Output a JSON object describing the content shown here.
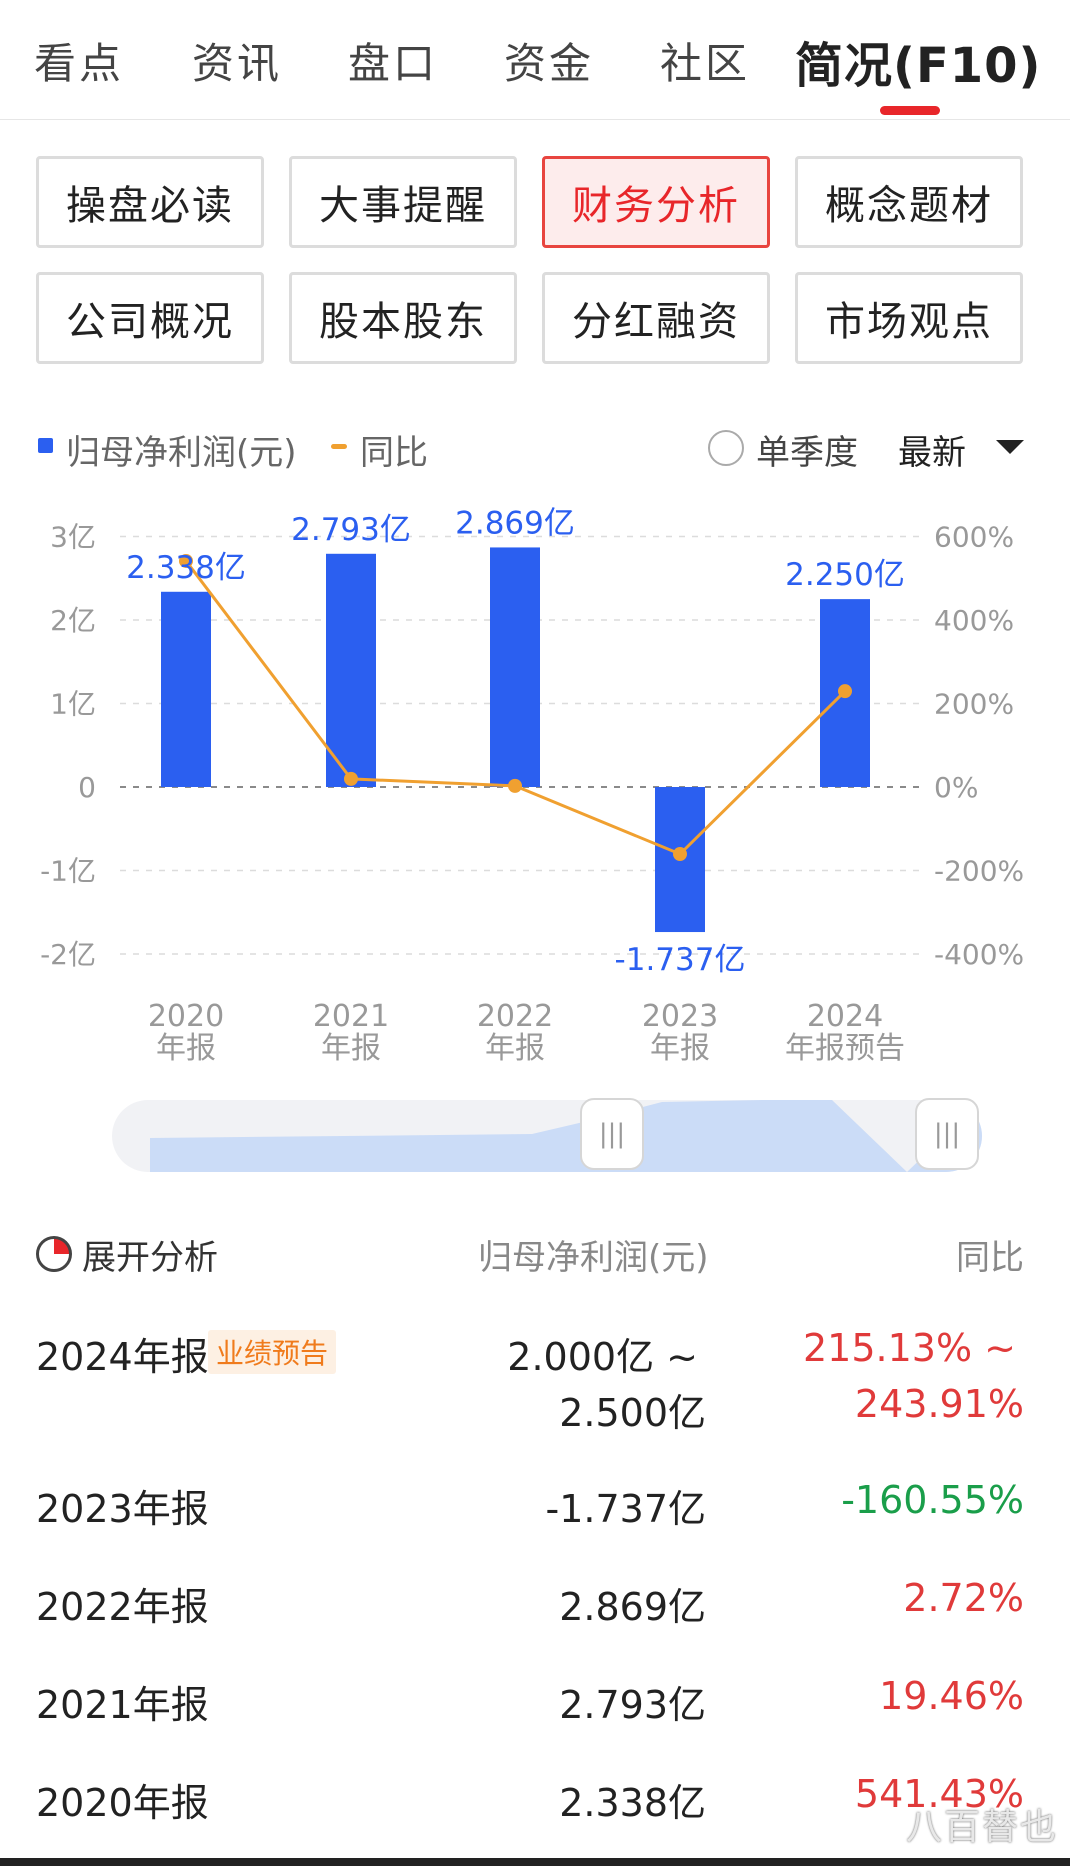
{
  "tabs": [
    "看点",
    "资讯",
    "盘口",
    "资金",
    "社区",
    "简况(F10)"
  ],
  "sub_buttons": [
    "操盘必读",
    "大事提醒",
    "财务分析",
    "概念题材",
    "公司概况",
    "股本股东",
    "分红融资",
    "市场观点"
  ],
  "legend": {
    "profit": "归母净利润(元)",
    "yoy": "同比",
    "quarter": "单季度",
    "latest": "最新"
  },
  "colors": {
    "bar": "#2b5ff0",
    "line": "#f0a030",
    "accent": "#e8262a",
    "up": "#e03a3a",
    "down": "#1a9e4a"
  },
  "chart_data": {
    "type": "bar",
    "categories": [
      [
        "2020",
        "年报"
      ],
      [
        "2021",
        "年报"
      ],
      [
        "2022",
        "年报"
      ],
      [
        "2023",
        "年报"
      ],
      [
        "2024",
        "年报预告"
      ]
    ],
    "series": [
      {
        "name": "归母净利润(元)",
        "type": "bar",
        "values": [
          2.338,
          2.793,
          2.869,
          -1.737,
          2.25
        ],
        "labels": [
          "2.338亿",
          "2.793亿",
          "2.869亿",
          "-1.737亿",
          "2.250亿"
        ]
      },
      {
        "name": "同比",
        "type": "line",
        "values": [
          541.43,
          19.46,
          2.72,
          -160.55,
          229.5
        ]
      }
    ],
    "y_left": {
      "ticks": [
        "3亿",
        "2亿",
        "1亿",
        "0",
        "-1亿",
        "-2亿"
      ],
      "range": [
        -2,
        3
      ]
    },
    "y_right": {
      "ticks": [
        "600%",
        "400%",
        "200%",
        "0%",
        "-200%",
        "-400%"
      ],
      "range": [
        -400,
        600
      ]
    },
    "grid": "dashed-horizontal",
    "legend_position": "top-left"
  },
  "slider": {
    "handle_icon": "|||"
  },
  "table": {
    "analysis_label": "展开分析",
    "col_profit": "归母净利润(元)",
    "col_yoy": "同比",
    "rows": [
      {
        "period": "2024年报",
        "badge": "业绩预告",
        "profit_line1": "2.000亿 ~",
        "profit_line2": "2.500亿",
        "yoy_line1": "215.13% ~",
        "yoy_line2": "243.91%"
      },
      {
        "period": "2023年报",
        "profit": "-1.737亿",
        "yoy": "-160.55%"
      },
      {
        "period": "2022年报",
        "profit": "2.869亿",
        "yoy": "2.72%"
      },
      {
        "period": "2021年报",
        "profit": "2.793亿",
        "yoy": "19.46%"
      },
      {
        "period": "2020年报",
        "profit": "2.338亿",
        "yoy": "541.43%"
      }
    ]
  },
  "watermark": "八百替也"
}
